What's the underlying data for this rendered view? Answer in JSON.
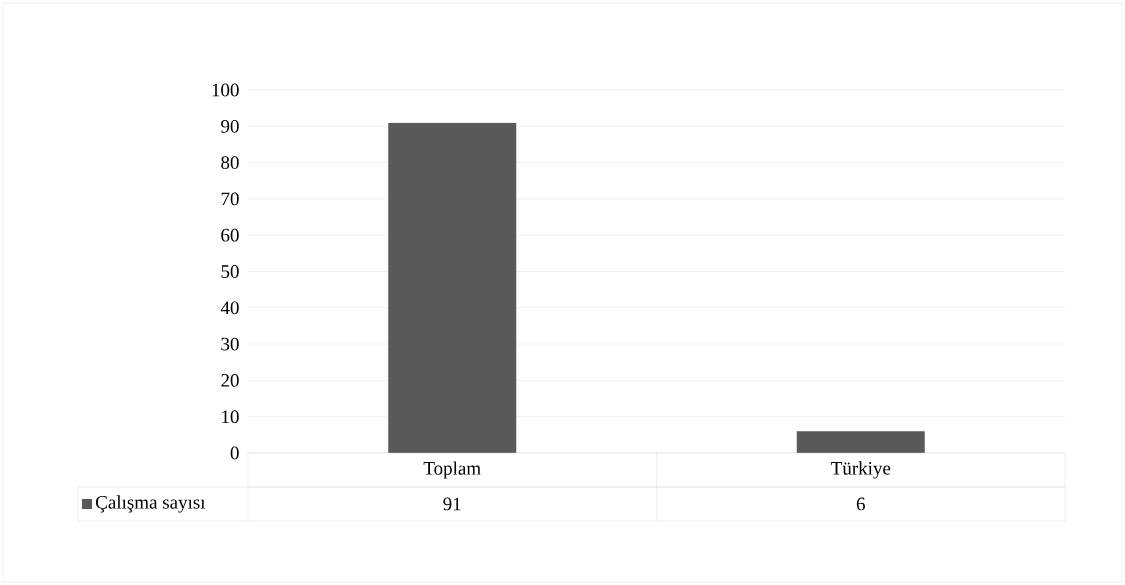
{
  "chart_data": {
    "type": "bar",
    "categories": [
      "Toplam",
      "Türkiye"
    ],
    "series": [
      {
        "name": "Çalışma sayısı",
        "color": "#595959",
        "values": [
          91,
          6
        ]
      }
    ],
    "ylim": [
      0,
      100
    ],
    "yticks": [
      0,
      10,
      20,
      30,
      40,
      50,
      60,
      70,
      80,
      90,
      100
    ],
    "grid": "y",
    "legend": "bottom left",
    "data_labels": true
  }
}
